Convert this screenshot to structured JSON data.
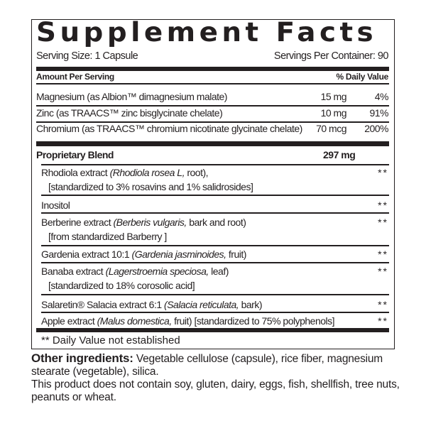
{
  "title": "Supplement Facts",
  "serving_size": "Serving Size: 1 Capsule",
  "servings_per_container": "Servings Per Container: 90",
  "header": {
    "amount": "Amount Per Serving",
    "dv": "% Daily Value"
  },
  "nutrients": [
    {
      "name": "Magnesium (as Albion™ dimagnesium malate)",
      "amount": "15 mg",
      "dv": "4%"
    },
    {
      "name": "Zinc (as TRAACS™ zinc bisglycinate chelate)",
      "amount": "10 mg",
      "dv": "91%"
    },
    {
      "name": "Chromium (as TRAACS™  chromium nicotinate glycinate chelate)",
      "amount": "70 mcg",
      "dv": "200%"
    }
  ],
  "blend": {
    "name": "Proprietary Blend",
    "amount": "297 mg",
    "items": [
      {
        "a": "Rhodiola extract ",
        "i": "(Rhodiola rosea L,",
        "b": " root),",
        "l2": "[standardized to 3% rosavins and 1% salidrosides]",
        "dv": "**"
      },
      {
        "a": "Inositol",
        "i": "",
        "b": "",
        "l2": "",
        "dv": "**"
      },
      {
        "a": "Berberine extract ",
        "i": "(Berberis vulgaris,",
        "b": " bark and root)",
        "l2": "[from standardized Barberry ]",
        "dv": "**"
      },
      {
        "a": "Gardenia extract 10:1 ",
        "i": "(Gardenia jasminoides,",
        "b": " fruit)",
        "l2": "",
        "dv": "**"
      },
      {
        "a": "Banaba extract ",
        "i": "(Lagerstroemia speciosa,",
        "b": " leaf)",
        "l2": "[standardized to 18% corosolic acid]",
        "dv": "**"
      },
      {
        "a": "Salaretin® Salacia extract 6:1 ",
        "i": "(Salacia reticulata,",
        "b": " bark)",
        "l2": "",
        "dv": "**"
      },
      {
        "a": "Apple extract ",
        "i": "(Malus domestica,",
        "b": " fruit) [standardized to 75% polyphenols]",
        "l2": "",
        "dv": "**"
      }
    ]
  },
  "footnote": "** Daily Value not established",
  "other": {
    "label": "Other ingredients:",
    "text": " Vegetable cellulose (capsule), rice fiber, magnesium stearate (vegetable), silica."
  },
  "disclaimer": "This product does not contain soy, gluten, dairy, eggs, fish, shellfish, tree nuts, peanuts or wheat."
}
